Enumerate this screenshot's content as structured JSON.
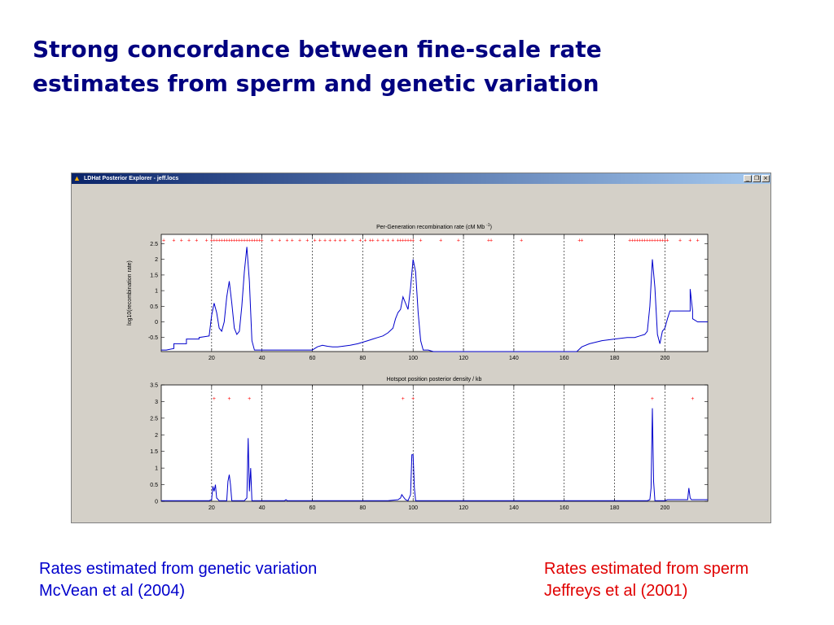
{
  "slide": {
    "title_line1": "Strong concordance between fine-scale rate",
    "title_line2": "estimates from sperm and genetic variation",
    "title_color": "#000080"
  },
  "window": {
    "title": "LDHat Posterior Explorer - jeff.locs",
    "icon": "matlab-icon",
    "controls": [
      "minimize-icon",
      "restore-icon",
      "close-icon"
    ]
  },
  "captions": {
    "left_line1": "Rates estimated from genetic variation",
    "left_line2": "McVean et al (2004)",
    "left_color": "#0000cc",
    "right_line1": "Rates estimated from sperm",
    "right_line2": "Jeffreys et al (2001)",
    "right_color": "#e00000"
  },
  "chart_data": [
    {
      "type": "line",
      "title": "Per-Generation recombination rate (cM Mb-1)",
      "title_superscript": "-1",
      "ylabel": "log10(recombination rate)",
      "xlim": [
        0,
        217
      ],
      "ylim": [
        -0.95,
        2.8
      ],
      "xticks": [
        20,
        40,
        60,
        80,
        100,
        120,
        140,
        160,
        180,
        200
      ],
      "yticks": [
        -0.5,
        0,
        0.5,
        1,
        1.5,
        2,
        2.5
      ],
      "ytick_labels": [
        "-0.5",
        "0",
        "0.5",
        "1",
        "1.5",
        "2",
        "2.5"
      ],
      "dashed_vlines": [
        20,
        40,
        60,
        80,
        100,
        120,
        140,
        160,
        180,
        200
      ],
      "line_color": "#0000cc",
      "marker_color": "#ff0000",
      "marker_y": 2.62,
      "markers_x": [
        1,
        5,
        8,
        11,
        14,
        18,
        20,
        21,
        22,
        23,
        24,
        25,
        26,
        27,
        28,
        29,
        30,
        31,
        32,
        33,
        34,
        35,
        36,
        37,
        38,
        39,
        40,
        44,
        47,
        50,
        52,
        55,
        58,
        61,
        63,
        65,
        67,
        69,
        71,
        73,
        76,
        79,
        81,
        83,
        84,
        86,
        88,
        90,
        92,
        94,
        95,
        96,
        97,
        98,
        99,
        100,
        103,
        111,
        118,
        130,
        131,
        143,
        166,
        167,
        186,
        187,
        188,
        189,
        190,
        191,
        192,
        193,
        194,
        195,
        196,
        197,
        198,
        199,
        200,
        201,
        206,
        210,
        213
      ],
      "series": [
        {
          "x": [
            0,
            2,
            5,
            5,
            10,
            10,
            15,
            15,
            19,
            20,
            21,
            22,
            23,
            24,
            25,
            26,
            27,
            28,
            29,
            30,
            31,
            32,
            33,
            34,
            35,
            36,
            37,
            38,
            39,
            40,
            60,
            62,
            64,
            66,
            68,
            70,
            72,
            75,
            78,
            80,
            82,
            84,
            86,
            88,
            90,
            92,
            93,
            94,
            95,
            96,
            97,
            98,
            99,
            100,
            101,
            102,
            103,
            104,
            105,
            106,
            108,
            110,
            165,
            167,
            170,
            175,
            180,
            185,
            188,
            190,
            192,
            193,
            194,
            195,
            196,
            197,
            198,
            199,
            200,
            201,
            202,
            205,
            210,
            210,
            211,
            211,
            213,
            215,
            217
          ],
          "y": [
            -0.9,
            -0.9,
            -0.85,
            -0.7,
            -0.7,
            -0.55,
            -0.55,
            -0.5,
            -0.45,
            0.2,
            0.6,
            0.3,
            -0.2,
            -0.3,
            0.0,
            0.8,
            1.3,
            0.6,
            -0.2,
            -0.4,
            -0.3,
            0.5,
            1.6,
            2.4,
            1.3,
            -0.6,
            -0.9,
            -0.9,
            -0.9,
            -0.9,
            -0.9,
            -0.8,
            -0.75,
            -0.78,
            -0.8,
            -0.8,
            -0.78,
            -0.75,
            -0.7,
            -0.65,
            -0.6,
            -0.55,
            -0.5,
            -0.45,
            -0.35,
            -0.2,
            0.1,
            0.3,
            0.4,
            0.8,
            0.6,
            0.4,
            1.1,
            2.0,
            1.6,
            0.3,
            -0.6,
            -0.9,
            -0.9,
            -0.9,
            -0.95,
            -0.95,
            -0.95,
            -0.8,
            -0.7,
            -0.6,
            -0.55,
            -0.5,
            -0.5,
            -0.45,
            -0.4,
            -0.3,
            0.5,
            2.0,
            1.1,
            -0.4,
            -0.7,
            -0.3,
            -0.2,
            0.1,
            0.35,
            0.35,
            0.35,
            1.05,
            0.35,
            0.1,
            0.0,
            0.0,
            0.0
          ]
        }
      ]
    },
    {
      "type": "line",
      "title": "Hotspot position posterior density / kb",
      "xlim": [
        0,
        217
      ],
      "ylim": [
        0,
        3.5
      ],
      "xticks": [
        20,
        40,
        60,
        80,
        100,
        120,
        140,
        160,
        180,
        200
      ],
      "yticks": [
        0,
        0.5,
        1,
        1.5,
        2,
        2.5,
        3,
        3.5
      ],
      "ytick_labels": [
        "0",
        "0.5",
        "1",
        "1.5",
        "2",
        "2.5",
        "3",
        "3.5"
      ],
      "dashed_vlines": [
        20,
        40,
        60,
        80,
        100,
        120,
        140,
        160,
        180,
        200
      ],
      "line_color": "#0000cc",
      "marker_color": "#ff0000",
      "marker_y": 3.1,
      "markers_x": [
        21,
        27,
        35,
        96,
        100,
        195,
        211
      ],
      "series": [
        {
          "x": [
            0,
            19,
            20,
            20.5,
            21,
            21.5,
            22,
            23,
            26,
            26.5,
            27,
            27.5,
            28,
            33,
            34,
            34.5,
            35,
            35.5,
            36,
            49,
            49.5,
            50,
            90,
            94,
            95,
            95.5,
            96,
            97,
            98,
            99,
            99.5,
            100,
            100.5,
            101,
            110,
            193,
            194,
            194.5,
            195,
            195.5,
            196,
            200,
            201,
            209,
            209.5,
            210,
            210.5,
            211,
            217
          ],
          "y": [
            0.02,
            0.02,
            0.05,
            0.45,
            0.3,
            0.5,
            0.1,
            0.02,
            0.02,
            0.6,
            0.8,
            0.5,
            0.02,
            0.02,
            0.1,
            1.9,
            0.3,
            1.0,
            0.02,
            0.02,
            0.05,
            0.02,
            0.02,
            0.05,
            0.1,
            0.2,
            0.15,
            0.05,
            0.02,
            0.2,
            1.4,
            1.4,
            0.4,
            0.02,
            0.02,
            0.02,
            0.05,
            0.4,
            2.8,
            0.6,
            0.02,
            0.02,
            0.05,
            0.05,
            0.4,
            0.1,
            0.05,
            0.05,
            0.05
          ]
        }
      ]
    }
  ]
}
